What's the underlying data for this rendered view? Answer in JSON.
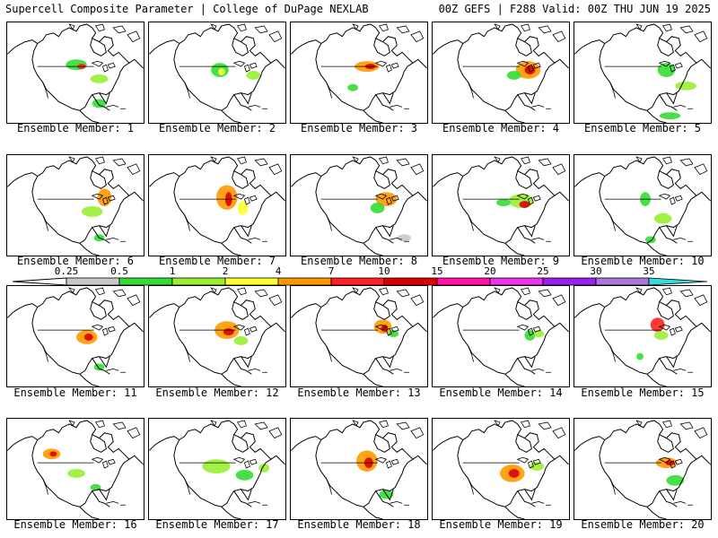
{
  "header": {
    "left_title": "Supercell Composite Parameter | College of DuPage NEXLAB",
    "right_title": "00Z GEFS | F288 Valid: 00Z THU JUN 19 2025"
  },
  "member_label_prefix": "Ensemble Member: ",
  "members": [
    {
      "label": "Ensemble Member: 1"
    },
    {
      "label": "Ensemble Member: 2"
    },
    {
      "label": "Ensemble Member: 3"
    },
    {
      "label": "Ensemble Member: 4"
    },
    {
      "label": "Ensemble Member: 5"
    },
    {
      "label": "Ensemble Member: 6"
    },
    {
      "label": "Ensemble Member: 7"
    },
    {
      "label": "Ensemble Member: 8"
    },
    {
      "label": "Ensemble Member: 9"
    },
    {
      "label": "Ensemble Member: 10"
    },
    {
      "label": "Ensemble Member: 11"
    },
    {
      "label": "Ensemble Member: 12"
    },
    {
      "label": "Ensemble Member: 13"
    },
    {
      "label": "Ensemble Member: 14"
    },
    {
      "label": "Ensemble Member: 15"
    },
    {
      "label": "Ensemble Member: 16"
    },
    {
      "label": "Ensemble Member: 17"
    },
    {
      "label": "Ensemble Member: 18"
    },
    {
      "label": "Ensemble Member: 19"
    },
    {
      "label": "Ensemble Member: 20"
    }
  ],
  "legend": {
    "thresholds": [
      "0.25",
      "0.5",
      "1",
      "2",
      "4",
      "7",
      "10",
      "15",
      "20",
      "25",
      "30",
      "35"
    ],
    "colors": [
      "#c8c8c8",
      "#33dd33",
      "#99ee33",
      "#ffff33",
      "#ff9900",
      "#ff2222",
      "#dd0000",
      "#ff11aa",
      "#ee33ee",
      "#9922ee",
      "#aa77dd",
      "#33dddd"
    ]
  }
}
